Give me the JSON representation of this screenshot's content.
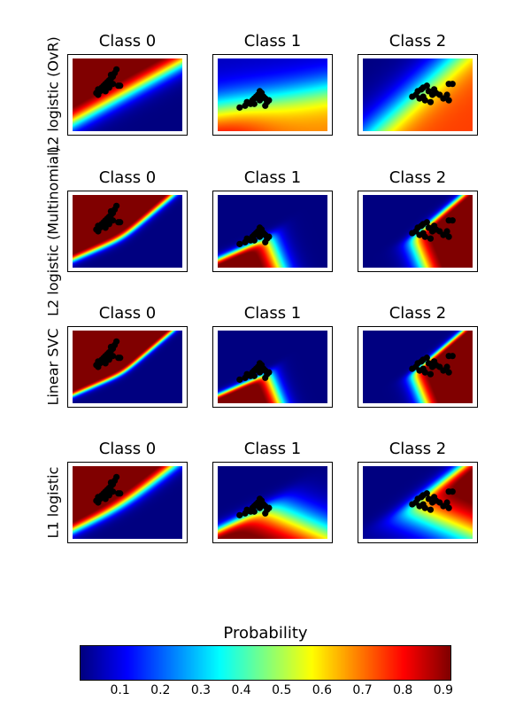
{
  "chart_data": {
    "type": "heatmap",
    "colormap": "jet",
    "xlim": [
      3,
      9
    ],
    "ylim": [
      1,
      5
    ],
    "grid": false,
    "rows": [
      {
        "label": "L2 logistic (OvR)",
        "panels": [
          "Class 0",
          "Class 1",
          "Class 2"
        ]
      },
      {
        "label": "L2 logistic (Multinomial)",
        "panels": [
          "Class 0",
          "Class 1",
          "Class 2"
        ]
      },
      {
        "label": "Linear SVC",
        "panels": [
          "Class 0",
          "Class 1",
          "Class 2"
        ]
      },
      {
        "label": "L1 logistic",
        "panels": [
          "Class 0",
          "Class 1",
          "Class 2"
        ]
      }
    ],
    "points": [
      [
        [
          4.3,
          3.1
        ],
        [
          4.4,
          3.3
        ],
        [
          4.5,
          3.2
        ],
        [
          4.6,
          3.4
        ],
        [
          4.7,
          3.5
        ],
        [
          4.8,
          3.6
        ],
        [
          4.9,
          3.7
        ],
        [
          5.0,
          3.8
        ],
        [
          5.1,
          3.9
        ],
        [
          5.2,
          4.0
        ],
        [
          5.3,
          4.2
        ],
        [
          5.4,
          4.4
        ],
        [
          5.0,
          3.4
        ],
        [
          4.8,
          3.2
        ],
        [
          5.2,
          3.6
        ],
        [
          5.5,
          3.5
        ],
        [
          5.6,
          3.5
        ],
        [
          4.4,
          3.0
        ],
        [
          5.1,
          4.1
        ],
        [
          4.9,
          3.5
        ]
      ],
      [
        [
          4.2,
          2.3
        ],
        [
          4.5,
          2.4
        ],
        [
          4.6,
          2.6
        ],
        [
          4.8,
          2.5
        ],
        [
          4.9,
          2.7
        ],
        [
          5.0,
          2.8
        ],
        [
          5.1,
          2.9
        ],
        [
          5.2,
          3.0
        ],
        [
          5.3,
          3.2
        ],
        [
          5.4,
          3.1
        ],
        [
          5.5,
          2.9
        ],
        [
          5.6,
          2.8
        ],
        [
          5.7,
          2.6
        ],
        [
          5.6,
          2.4
        ],
        [
          5.3,
          2.7
        ],
        [
          5.0,
          2.5
        ],
        [
          5.8,
          2.7
        ],
        [
          5.4,
          3.0
        ]
      ],
      [
        [
          5.7,
          2.9
        ],
        [
          5.9,
          3.0
        ],
        [
          6.0,
          3.2
        ],
        [
          6.2,
          3.3
        ],
        [
          6.3,
          3.4
        ],
        [
          6.5,
          3.5
        ],
        [
          6.6,
          3.2
        ],
        [
          6.8,
          3.0
        ],
        [
          7.0,
          3.1
        ],
        [
          7.2,
          3.0
        ],
        [
          7.4,
          2.8
        ],
        [
          7.6,
          3.0
        ],
        [
          7.7,
          3.6
        ],
        [
          7.9,
          3.6
        ],
        [
          6.1,
          2.8
        ],
        [
          6.4,
          2.7
        ],
        [
          6.7,
          2.6
        ],
        [
          7.7,
          2.7
        ],
        [
          6.9,
          3.3
        ],
        [
          6.3,
          2.9
        ]
      ]
    ],
    "colorbar": {
      "title": "Probability",
      "range": [
        0.0,
        0.92
      ],
      "ticks": [
        "0.1",
        "0.2",
        "0.3",
        "0.4",
        "0.5",
        "0.6",
        "0.7",
        "0.8",
        "0.9"
      ]
    },
    "point_color": "#000000"
  }
}
